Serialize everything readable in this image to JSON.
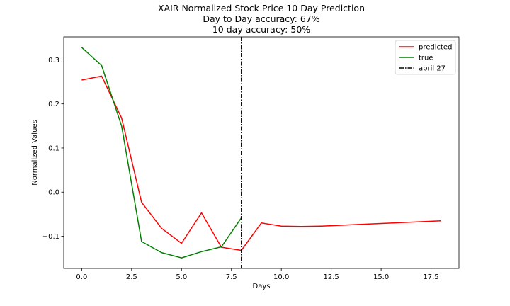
{
  "chart_data": {
    "type": "line",
    "title_lines": [
      "XAIR Normalized Stock Price 10 Day Prediction",
      "Day to Day accuracy: 67%",
      "10 day accuracy: 50%"
    ],
    "xlabel": "Days",
    "ylabel": "Normalized Values",
    "xlim": [
      -0.9,
      18.9
    ],
    "ylim": [
      -0.173,
      0.352
    ],
    "x_ticks": [
      0.0,
      2.5,
      5.0,
      7.5,
      10.0,
      12.5,
      15.0,
      17.5
    ],
    "x_tick_labels": [
      "0.0",
      "2.5",
      "5.0",
      "7.5",
      "10.0",
      "12.5",
      "15.0",
      "17.5"
    ],
    "y_ticks": [
      -0.1,
      0.0,
      0.1,
      0.2,
      0.3
    ],
    "y_tick_labels": [
      "−0.1",
      "0.0",
      "0.1",
      "0.2",
      "0.3"
    ],
    "grid": false,
    "legend_position": "top-right",
    "series": [
      {
        "name": "predicted",
        "color": "#ff0000",
        "x": [
          0,
          1,
          2,
          3,
          4,
          5,
          6,
          7,
          8,
          9,
          10,
          11,
          12,
          13,
          14,
          15,
          16,
          17,
          18
        ],
        "values": [
          0.254,
          0.263,
          0.168,
          -0.023,
          -0.082,
          -0.116,
          -0.047,
          -0.125,
          -0.132,
          -0.07,
          -0.077,
          -0.078,
          -0.077,
          -0.075,
          -0.073,
          -0.071,
          -0.069,
          -0.067,
          -0.065
        ]
      },
      {
        "name": "true",
        "color": "#008000",
        "x": [
          0,
          1,
          2,
          3,
          4,
          5,
          6,
          7,
          8
        ],
        "values": [
          0.328,
          0.287,
          0.15,
          -0.112,
          -0.137,
          -0.149,
          -0.135,
          -0.124,
          -0.058
        ]
      }
    ],
    "vline": {
      "name": "april 27",
      "x": 8,
      "color": "#000000",
      "style": "dashdot"
    }
  }
}
